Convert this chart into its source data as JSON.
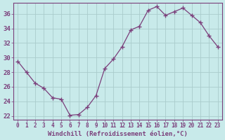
{
  "x": [
    0,
    1,
    2,
    3,
    4,
    5,
    6,
    7,
    8,
    9,
    10,
    11,
    12,
    13,
    14,
    15,
    16,
    17,
    18,
    19,
    20,
    21,
    22,
    23
  ],
  "y": [
    29.5,
    28.0,
    26.5,
    25.8,
    24.5,
    24.3,
    22.1,
    22.2,
    23.2,
    24.8,
    28.5,
    29.8,
    31.5,
    33.8,
    34.3,
    36.5,
    37.0,
    35.8,
    36.3,
    36.8,
    35.8,
    34.8,
    33.0,
    31.5
  ],
  "line_color": "#7b3f7b",
  "marker": "+",
  "marker_size": 4,
  "bg_color": "#c8eaea",
  "grid_color": "#aacccc",
  "xlabel": "Windchill (Refroidissement éolien,°C)",
  "xlabel_color": "#7b3f7b",
  "tick_color": "#7b3f7b",
  "spine_color": "#7b3f7b",
  "ylim": [
    21.5,
    37.5
  ],
  "xlim": [
    -0.5,
    23.5
  ],
  "yticks": [
    22,
    24,
    26,
    28,
    30,
    32,
    34,
    36
  ],
  "xticks": [
    0,
    1,
    2,
    3,
    4,
    5,
    6,
    7,
    8,
    9,
    10,
    11,
    12,
    13,
    14,
    15,
    16,
    17,
    18,
    19,
    20,
    21,
    22,
    23
  ],
  "xlabel_fontsize": 6.5,
  "tick_fontsize": 5.5,
  "ytick_fontsize": 6.5
}
